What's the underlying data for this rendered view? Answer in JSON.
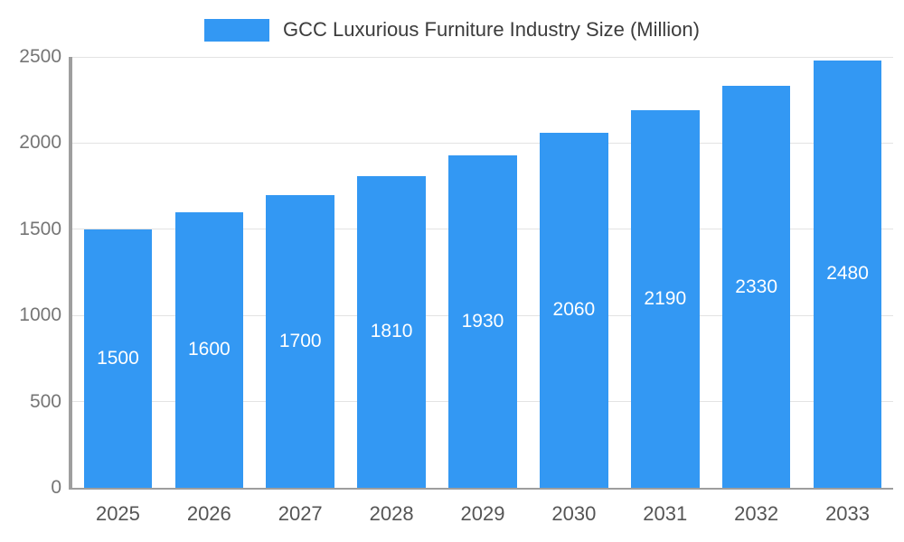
{
  "chart_data": {
    "type": "bar",
    "title": "GCC Luxurious Furniture Industry Size (Million)",
    "categories": [
      "2025",
      "2026",
      "2027",
      "2028",
      "2029",
      "2030",
      "2031",
      "2032",
      "2033"
    ],
    "values": [
      1500,
      1600,
      1700,
      1810,
      1930,
      2060,
      2190,
      2330,
      2480
    ],
    "xlabel": "",
    "ylabel": "",
    "ylim": [
      0,
      2500
    ],
    "yticks": [
      0,
      500,
      1000,
      1500,
      2000,
      2500
    ],
    "grid": true,
    "legend_position": "top",
    "bar_color": "#3398f3",
    "bar_label_color": "#ffffff",
    "grid_color": "#e3e3e3",
    "axis_color": "#9e9e9e",
    "ytick_label_color": "#757575",
    "xtick_label_color": "#555555"
  }
}
